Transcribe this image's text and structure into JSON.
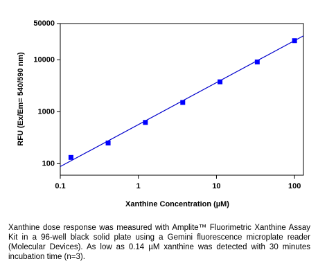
{
  "chart_data": {
    "type": "scatter",
    "xlabel": "Xanthine Concentration (µM)",
    "ylabel": "RFU (Ex/Em= 540/590 nm)",
    "x": [
      0.137,
      0.41,
      1.23,
      3.7,
      11.1,
      33.3,
      100
    ],
    "series": [
      {
        "color": "#0000ff",
        "values": [
          132,
          250,
          623,
          1510,
          3770,
          9100,
          23400
        ]
      }
    ],
    "fit": {
      "color": "#0000cc",
      "x": [
        0.1,
        130
      ],
      "values": [
        88,
        29000
      ]
    },
    "xlim": [
      0.1,
      130
    ],
    "ylim": [
      60,
      50000
    ],
    "xticks": [
      0.1,
      1,
      10,
      100
    ],
    "yticks": [
      100,
      1000,
      10000,
      50000
    ],
    "xscale": "log",
    "yscale": "log"
  },
  "caption": "Xanthine dose response was measured with Amplite™ Fluorimetric Xanthine Assay Kit in a 96-well black solid plate using a Gemini fluorescence microplate reader (Molecular Devices). As low as 0.14 µM xanthine was detected with 30 minutes incubation time (n=3)."
}
